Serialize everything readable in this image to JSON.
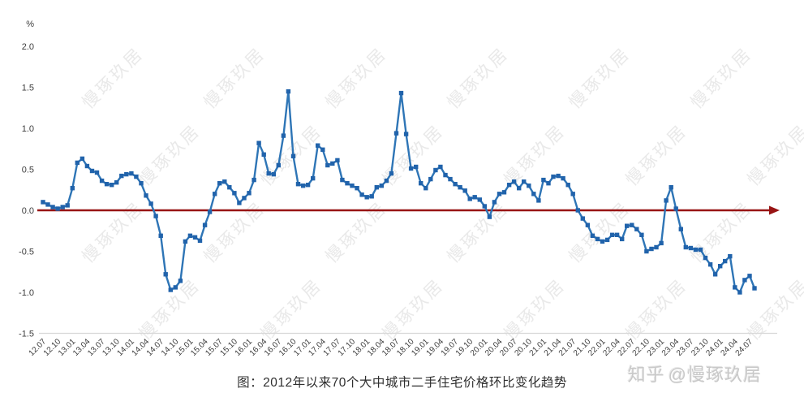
{
  "page": {
    "caption": "图：2012年以来70个大中城市二手住宅价格环比变化趋势",
    "attribution_platform": "知乎",
    "attribution_handle": "@慢琢玖居",
    "watermark_text": "慢琢玖居"
  },
  "colors": {
    "line": "#2e75b6",
    "marker": "#2163ab",
    "zero_line": "#981414",
    "axis_line": "#d8d8d8",
    "tick_text": "#3c3c3c",
    "watermark": "#e9e9e9",
    "zhihu_watermark": "#c9c9c9"
  },
  "chart_data": {
    "type": "line",
    "title": "图：2012年以来70个大中城市二手住宅价格环比变化趋势",
    "ylabel": "%",
    "ylim": [
      -1.5,
      2.0
    ],
    "y_ticks": [
      "2.0",
      "1.5",
      "1.0",
      "0.5",
      "0.0",
      "-0.5",
      "-1.0",
      "-1.5"
    ],
    "grid": false,
    "legend": false,
    "zero_line": true,
    "marker": "square",
    "x_tick_every": 3,
    "x": [
      "12.07",
      "12.08",
      "12.09",
      "12.10",
      "12.11",
      "12.12",
      "13.01",
      "13.02",
      "13.03",
      "13.04",
      "13.05",
      "13.06",
      "13.07",
      "13.08",
      "13.09",
      "13.10",
      "13.11",
      "13.12",
      "14.01",
      "14.02",
      "14.03",
      "14.04",
      "14.05",
      "14.06",
      "14.07",
      "14.08",
      "14.09",
      "14.10",
      "14.11",
      "14.12",
      "15.01",
      "15.02",
      "15.03",
      "15.04",
      "15.05",
      "15.06",
      "15.07",
      "15.08",
      "15.09",
      "15.10",
      "15.11",
      "15.12",
      "16.01",
      "16.02",
      "16.03",
      "16.04",
      "16.05",
      "16.06",
      "16.07",
      "16.08",
      "16.09",
      "16.10",
      "16.11",
      "16.12",
      "17.01",
      "17.02",
      "17.03",
      "17.04",
      "17.05",
      "17.06",
      "17.07",
      "17.08",
      "17.09",
      "17.10",
      "17.11",
      "17.12",
      "18.01",
      "18.02",
      "18.03",
      "18.04",
      "18.05",
      "18.06",
      "18.07",
      "18.08",
      "18.09",
      "18.10",
      "18.11",
      "18.12",
      "19.01",
      "19.02",
      "19.03",
      "19.04",
      "19.05",
      "19.06",
      "19.07",
      "19.08",
      "19.09",
      "19.10",
      "19.11",
      "19.12",
      "20.01",
      "20.02",
      "20.03",
      "20.04",
      "20.05",
      "20.06",
      "20.07",
      "20.08",
      "20.09",
      "20.10",
      "20.11",
      "20.12",
      "21.01",
      "21.02",
      "21.03",
      "21.04",
      "21.05",
      "21.06",
      "21.07",
      "21.08",
      "21.09",
      "21.10",
      "21.11",
      "21.12",
      "22.01",
      "22.02",
      "22.03",
      "22.04",
      "22.05",
      "22.06",
      "22.07",
      "22.08",
      "22.09",
      "22.10",
      "22.11",
      "22.12",
      "23.01",
      "23.02",
      "23.03",
      "23.04",
      "23.05",
      "23.06",
      "23.07",
      "23.08",
      "23.09",
      "23.10",
      "23.11",
      "23.12",
      "24.01",
      "24.02",
      "24.03",
      "24.04",
      "24.05",
      "24.06",
      "24.07",
      "24.08"
    ],
    "values": [
      0.1,
      0.07,
      0.04,
      0.02,
      0.04,
      0.06,
      0.27,
      0.58,
      0.63,
      0.54,
      0.48,
      0.46,
      0.36,
      0.32,
      0.31,
      0.34,
      0.42,
      0.44,
      0.45,
      0.41,
      0.33,
      0.18,
      0.08,
      -0.07,
      -0.31,
      -0.78,
      -0.97,
      -0.94,
      -0.86,
      -0.38,
      -0.31,
      -0.33,
      -0.37,
      -0.18,
      -0.02,
      0.2,
      0.33,
      0.35,
      0.28,
      0.21,
      0.09,
      0.15,
      0.21,
      0.37,
      0.82,
      0.68,
      0.45,
      0.44,
      0.55,
      0.91,
      1.45,
      0.66,
      0.32,
      0.3,
      0.31,
      0.39,
      0.79,
      0.74,
      0.55,
      0.57,
      0.61,
      0.37,
      0.33,
      0.3,
      0.27,
      0.19,
      0.16,
      0.17,
      0.28,
      0.3,
      0.36,
      0.45,
      0.94,
      1.43,
      0.93,
      0.51,
      0.53,
      0.33,
      0.27,
      0.38,
      0.49,
      0.53,
      0.43,
      0.38,
      0.32,
      0.28,
      0.24,
      0.14,
      0.16,
      0.13,
      0.05,
      -0.08,
      0.1,
      0.2,
      0.22,
      0.31,
      0.35,
      0.27,
      0.35,
      0.3,
      0.2,
      0.12,
      0.37,
      0.33,
      0.41,
      0.42,
      0.39,
      0.31,
      0.2,
      0.0,
      -0.1,
      -0.18,
      -0.31,
      -0.35,
      -0.38,
      -0.36,
      -0.3,
      -0.3,
      -0.35,
      -0.19,
      -0.18,
      -0.23,
      -0.3,
      -0.5,
      -0.47,
      -0.45,
      -0.4,
      0.12,
      0.28,
      0.02,
      -0.23,
      -0.45,
      -0.46,
      -0.48,
      -0.48,
      -0.58,
      -0.66,
      -0.78,
      -0.68,
      -0.62,
      -0.56,
      -0.94,
      -1.0,
      -0.85,
      -0.8,
      -0.95
    ]
  }
}
